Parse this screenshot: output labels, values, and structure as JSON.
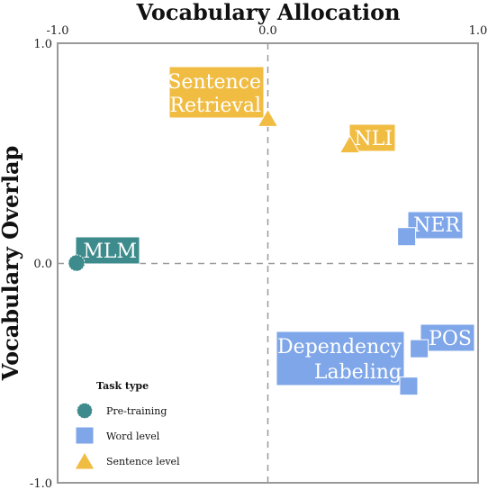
{
  "chart_data": {
    "type": "scatter",
    "title": "Vocabulary Allocation",
    "xlabel": "",
    "ylabel": "Vocabulary Overlap",
    "xlim": [
      -1.0,
      1.0
    ],
    "ylim": [
      -1.0,
      1.0
    ],
    "x_tick_labels": [
      "-1.0",
      "0.0",
      "1.0"
    ],
    "y_tick_labels": [
      "1.0",
      "0.0",
      "-1.0"
    ],
    "reference_lines": "dashed lines at x = 0 and y = 0",
    "x_axis_position": "top",
    "grid": false,
    "legend": {
      "title": "Task type",
      "position": "bottom-left",
      "entries": [
        {
          "label": "Pre-training",
          "marker": "circle",
          "color": "#3d8b8c"
        },
        {
          "label": "Word level",
          "marker": "square",
          "color": "#7ea6e8"
        },
        {
          "label": "Sentence level",
          "marker": "triangle",
          "color": "#f0bc42"
        }
      ]
    },
    "points": [
      {
        "label": "MLM",
        "x": -0.91,
        "y": 0.0,
        "group": "Pre-training"
      },
      {
        "label": "Sentence Retrieval",
        "x": 0.0,
        "y": 0.65,
        "group": "Sentence level"
      },
      {
        "label": "NLI",
        "x": 0.39,
        "y": 0.53,
        "group": "Sentence level"
      },
      {
        "label": "NER",
        "x": 0.66,
        "y": 0.12,
        "group": "Word level"
      },
      {
        "label": "POS",
        "x": 0.72,
        "y": -0.39,
        "group": "Word level"
      },
      {
        "label": "Dependency Labeling",
        "x": 0.67,
        "y": -0.56,
        "group": "Word level"
      }
    ]
  }
}
